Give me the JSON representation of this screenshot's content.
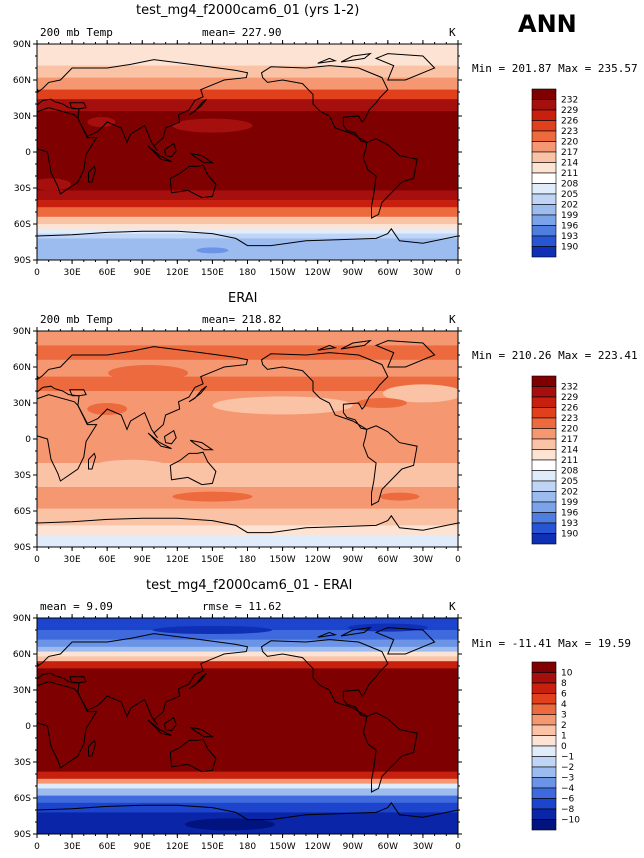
{
  "season": "ANN",
  "panels": [
    {
      "title": "test_mg4_f2000cam6_01 (yrs 1-2)",
      "left_label": "200 mb Temp",
      "center_label": "mean= 227.90",
      "units": "K",
      "minmax": "Min = 201.87 Max = 235.57",
      "colorbar_labels": [
        "232",
        "229",
        "226",
        "223",
        "220",
        "217",
        "214",
        "211",
        "208",
        "205",
        "202",
        "199",
        "196",
        "193",
        "190"
      ],
      "field": "test"
    },
    {
      "title": "ERAI",
      "left_label": "200 mb Temp",
      "center_label": "mean= 218.82",
      "units": "K",
      "minmax": "Min = 210.26 Max = 223.41",
      "colorbar_labels": [
        "232",
        "229",
        "226",
        "223",
        "220",
        "217",
        "214",
        "211",
        "208",
        "205",
        "202",
        "199",
        "196",
        "193",
        "190"
      ],
      "field": "ref"
    },
    {
      "title": "test_mg4_f2000cam6_01 - ERAI",
      "left_label": "mean =   9.09",
      "center_label": "rmse =   11.62",
      "units": "K",
      "minmax": "Min = -11.41 Max =  19.59",
      "colorbar_labels": [
        "10",
        "8",
        "6",
        "4",
        "3",
        "2",
        "1",
        "0",
        "−1",
        "−2",
        "−3",
        "−4",
        "−6",
        "−8",
        "−10"
      ],
      "field": "diff"
    }
  ],
  "lat_ticks": [
    "90N",
    "60N",
    "30N",
    "0",
    "30S",
    "60S",
    "90S"
  ],
  "lon_ticks": [
    "0",
    "30E",
    "60E",
    "90E",
    "120E",
    "150E",
    "180",
    "150W",
    "120W",
    "90W",
    "60W",
    "30W",
    "0"
  ],
  "colors": {
    "warm": [
      "#7f0000",
      "#a50f0d",
      "#c8200f",
      "#e0401c",
      "#ed6a3f",
      "#f59872",
      "#fbc3a6",
      "#fde3d3"
    ],
    "cool": [
      "#e1ecfb",
      "#c0d5f5",
      "#9cbcf0",
      "#7aa3ea",
      "#4f7ee0",
      "#2855d4",
      "#0f2fb4",
      "#00137e"
    ],
    "diff_warm": [
      "#7f0000",
      "#a50f0d",
      "#c8200f",
      "#e0401c",
      "#ed6a3f",
      "#f59872",
      "#fbc3a6"
    ],
    "diff_cool": [
      "#fde3d3",
      "#e1ecfb",
      "#9cbcf0",
      "#6b93e6",
      "#3e6ade",
      "#1c44cc",
      "#0a25a8",
      "#00137e"
    ]
  }
}
